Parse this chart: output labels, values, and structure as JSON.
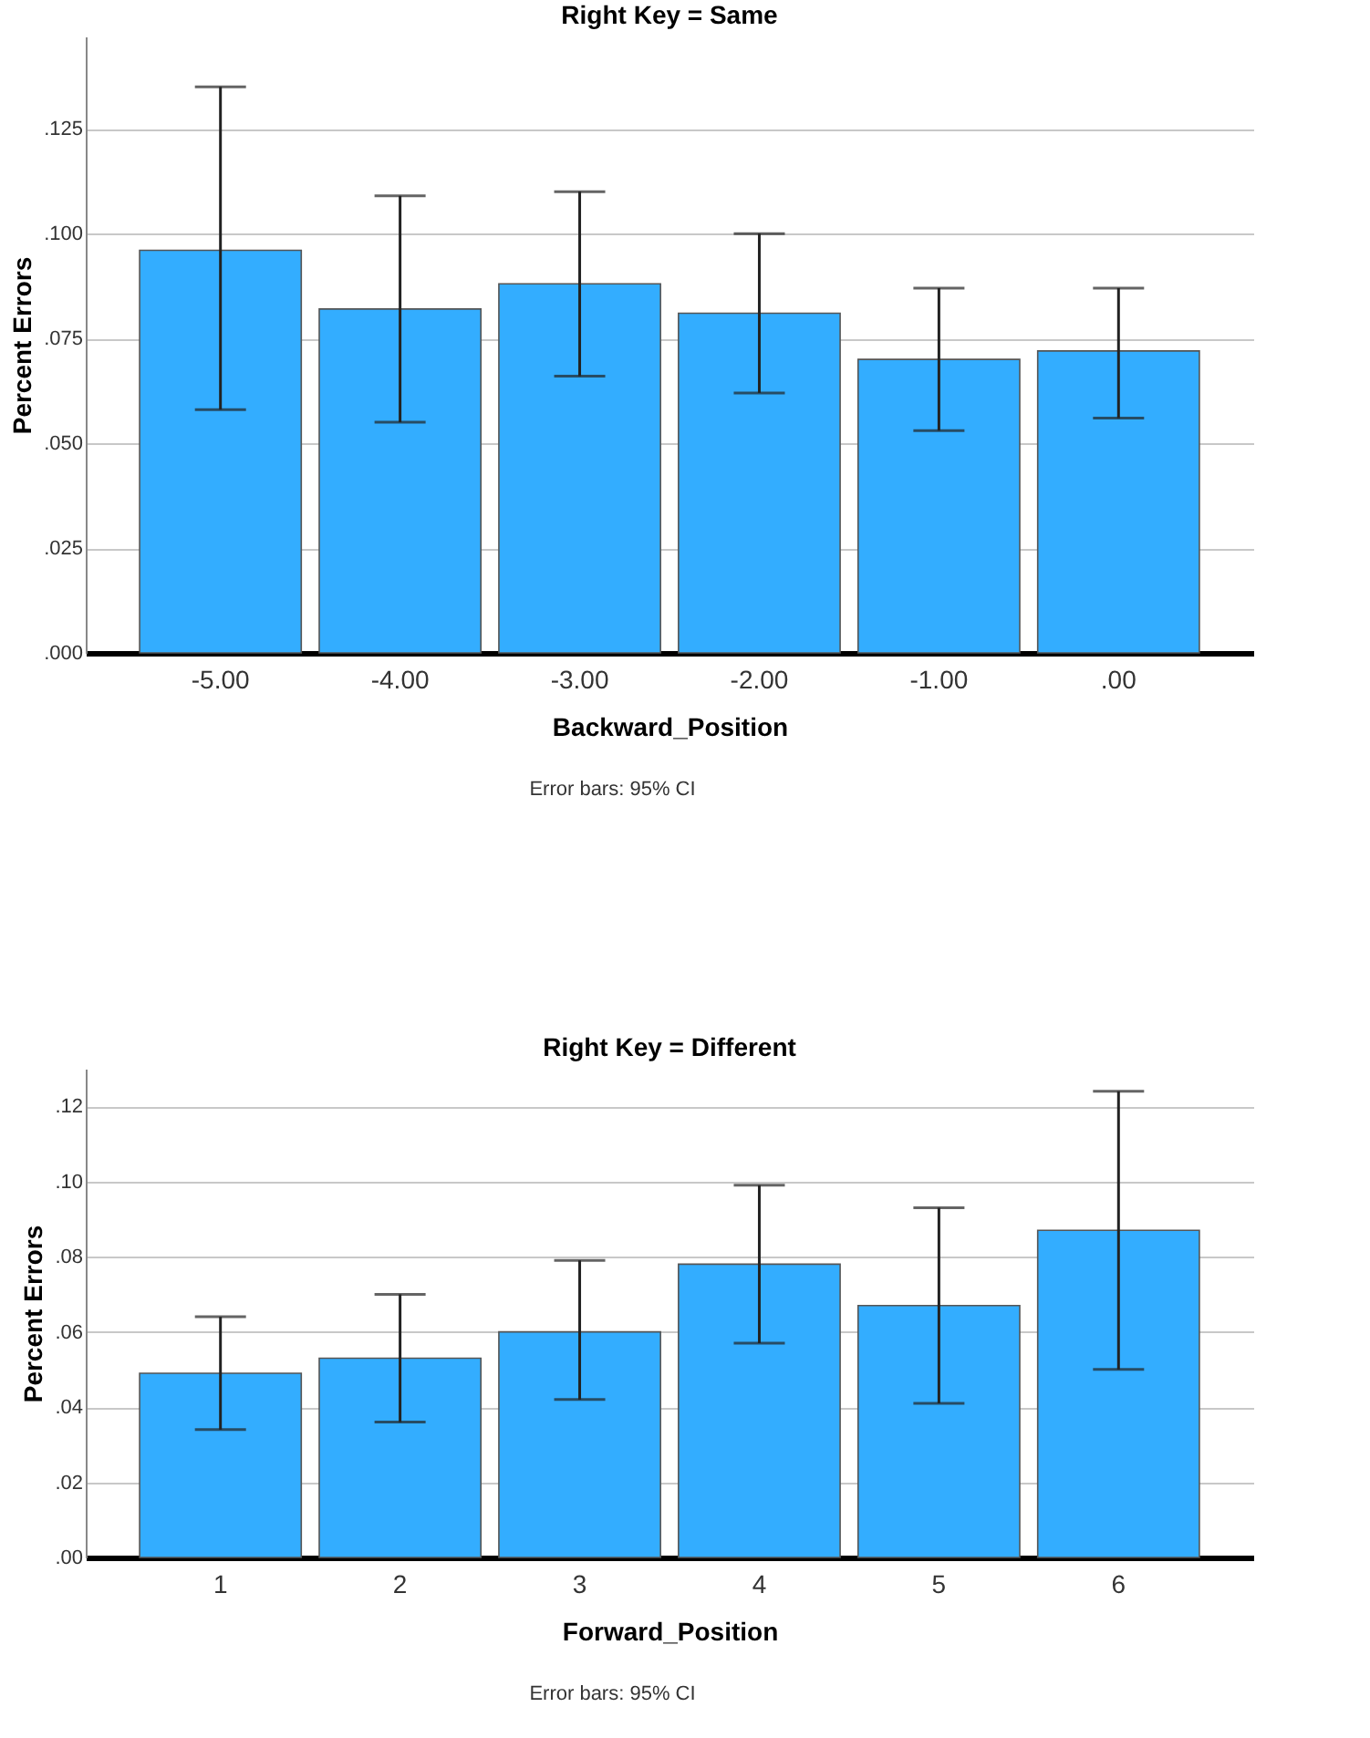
{
  "chart_data": [
    {
      "type": "bar",
      "title": "Right Key = Same",
      "xlabel": "Backward_Position",
      "ylabel": "Percent Errors",
      "annotations": [
        "Error bars: 95% CI"
      ],
      "categories": [
        "-5.00",
        "-4.00",
        "-3.00",
        "-2.00",
        "-1.00",
        ".00"
      ],
      "values": [
        0.096,
        0.082,
        0.088,
        0.081,
        0.07,
        0.072
      ],
      "color": "#33adff",
      "errors": [
        [
          0.058,
          0.135
        ],
        [
          0.055,
          0.109
        ],
        [
          0.066,
          0.11
        ],
        [
          0.062,
          0.1
        ],
        [
          0.053,
          0.087
        ],
        [
          0.056,
          0.087
        ]
      ],
      "ylim": [
        0,
        0.147
      ],
      "yticks": [
        {
          "value": 0,
          "label": ".000"
        },
        {
          "value": 0.025,
          "label": ".025"
        },
        {
          "value": 0.05,
          "label": ".050"
        },
        {
          "value": 0.075,
          "label": ".075"
        },
        {
          "value": 0.1,
          "label": ".100"
        },
        {
          "value": 0.125,
          "label": ".125"
        }
      ],
      "grid": "y"
    },
    {
      "type": "bar",
      "title": "Right Key = Different",
      "xlabel": "Forward_Position",
      "ylabel": "Percent Errors",
      "annotations": [
        "Error bars: 95% CI"
      ],
      "categories": [
        "1",
        "2",
        "3",
        "4",
        "5",
        "6"
      ],
      "values": [
        0.049,
        0.053,
        0.06,
        0.078,
        0.067,
        0.087
      ],
      "color": "#33adff",
      "errors": [
        [
          0.034,
          0.064
        ],
        [
          0.036,
          0.07
        ],
        [
          0.042,
          0.079
        ],
        [
          0.057,
          0.099
        ],
        [
          0.041,
          0.093
        ],
        [
          0.05,
          0.124
        ]
      ],
      "ylim": [
        0,
        0.13
      ],
      "yticks": [
        {
          "value": 0,
          "label": ".00"
        },
        {
          "value": 0.02,
          "label": ".02"
        },
        {
          "value": 0.04,
          "label": ".04"
        },
        {
          "value": 0.06,
          "label": ".06"
        },
        {
          "value": 0.08,
          "label": ".08"
        },
        {
          "value": 0.1,
          "label": ".10"
        },
        {
          "value": 0.12,
          "label": ".12"
        }
      ],
      "grid": "y"
    }
  ]
}
